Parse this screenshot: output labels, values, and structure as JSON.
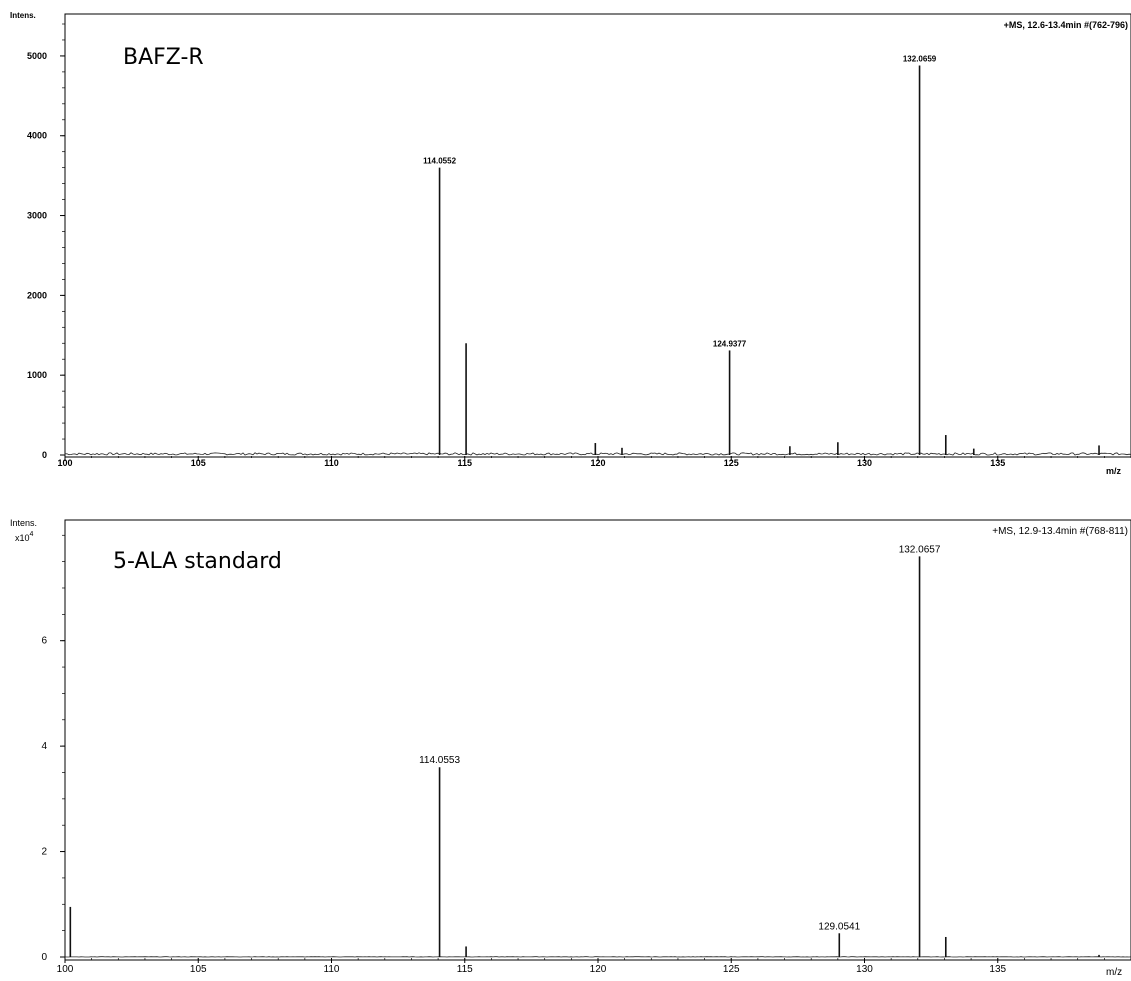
{
  "chart_data": [
    {
      "type": "line",
      "title": "BAFZ-R",
      "scan_info": "+MS, 12.6-13.4min #(762-796)",
      "ylabel": "Intens.",
      "xlabel": "m/z",
      "xlim": [
        100,
        140
      ],
      "ylim": [
        0,
        5400
      ],
      "x_ticks": [
        100,
        105,
        110,
        115,
        120,
        125,
        130,
        135
      ],
      "y_ticks": [
        0,
        1000,
        2000,
        3000,
        4000,
        5000
      ],
      "x_tick_labels": [
        "100",
        "105",
        "110",
        "115",
        "120",
        "125",
        "130",
        "135"
      ],
      "y_tick_labels": [
        "0",
        "1000",
        "2000",
        "3000",
        "4000",
        "5000"
      ],
      "peaks": [
        {
          "mz": 114.0552,
          "intensity": 3600,
          "label": "114.0552"
        },
        {
          "mz": 115.05,
          "intensity": 1400
        },
        {
          "mz": 119.9,
          "intensity": 150
        },
        {
          "mz": 120.9,
          "intensity": 90
        },
        {
          "mz": 124.9377,
          "intensity": 1310,
          "label": "124.9377"
        },
        {
          "mz": 127.2,
          "intensity": 110
        },
        {
          "mz": 129.0,
          "intensity": 160
        },
        {
          "mz": 132.0659,
          "intensity": 4880,
          "label": "132.0659"
        },
        {
          "mz": 133.05,
          "intensity": 250
        },
        {
          "mz": 134.1,
          "intensity": 80
        },
        {
          "mz": 138.8,
          "intensity": 120
        }
      ]
    },
    {
      "type": "line",
      "title": "5-ALA standard",
      "scan_info": "+MS, 12.9-13.4min #(768-811)",
      "ylabel": "Intens.",
      "ylabel_unit": "x10",
      "ylabel_exp": "4",
      "xlabel": "m/z",
      "xlim": [
        100,
        140
      ],
      "ylim": [
        0,
        8.1
      ],
      "x_ticks": [
        100,
        105,
        110,
        115,
        120,
        125,
        130,
        135
      ],
      "y_ticks": [
        0,
        2,
        4,
        6
      ],
      "x_tick_labels": [
        "100",
        "105",
        "110",
        "115",
        "120",
        "125",
        "130",
        "135"
      ],
      "y_tick_labels": [
        "0",
        "2",
        "4",
        "6"
      ],
      "peaks": [
        {
          "mz": 100.2,
          "intensity": 0.95
        },
        {
          "mz": 114.0553,
          "intensity": 3.6,
          "label": "114.0553"
        },
        {
          "mz": 115.05,
          "intensity": 0.2
        },
        {
          "mz": 129.0541,
          "intensity": 0.45,
          "label": "129.0541"
        },
        {
          "mz": 132.0657,
          "intensity": 7.6,
          "label": "132.0657"
        },
        {
          "mz": 133.05,
          "intensity": 0.38
        },
        {
          "mz": 138.8,
          "intensity": 0.04
        }
      ]
    }
  ]
}
